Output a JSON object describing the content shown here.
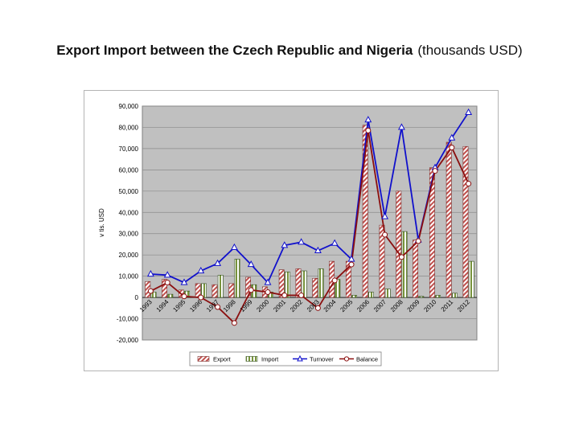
{
  "page": {
    "title_main": "Export Import between the Czech Republic and Nigeria",
    "title_sub": "(thousands USD)"
  },
  "chart_data": {
    "type": "bar",
    "categories": [
      "1993",
      "1994",
      "1995",
      "1996",
      "1997",
      "1998",
      "1999",
      "2000",
      "2001",
      "2002",
      "2003",
      "2004",
      "2005",
      "2006",
      "2007",
      "2008",
      "2009",
      "2010",
      "2011",
      "2012"
    ],
    "ylabel": "v tis. USD",
    "ylim": [
      -20000,
      90000
    ],
    "yticks": [
      -20000,
      -10000,
      0,
      10000,
      20000,
      30000,
      40000,
      50000,
      60000,
      70000,
      80000,
      90000
    ],
    "ytick_labels": [
      "-20,000",
      "-10,000",
      "0",
      "10,000",
      "20,000",
      "30,000",
      "40,000",
      "50,000",
      "60,000",
      "70,000",
      "80,000",
      "90,000"
    ],
    "grid": true,
    "legend_position": "bottom",
    "series": [
      {
        "name": "Export",
        "kind": "bar",
        "color": "#c0504d",
        "values": [
          7500,
          8500,
          3500,
          6500,
          6000,
          6500,
          9500,
          5000,
          13000,
          13500,
          9000,
          17000,
          17000,
          81000,
          34000,
          50000,
          27000,
          61000,
          73000,
          71000
        ]
      },
      {
        "name": "Import",
        "kind": "bar",
        "color": "#77933c",
        "values": [
          2500,
          1500,
          3000,
          6500,
          10500,
          18000,
          6000,
          2500,
          12000,
          12500,
          13500,
          8500,
          1000,
          2500,
          4000,
          31000,
          500,
          1000,
          2000,
          17000
        ]
      },
      {
        "name": "Turnover",
        "kind": "line",
        "color": "#1010cc",
        "values": [
          11000,
          10500,
          7000,
          12500,
          16000,
          23500,
          15500,
          7000,
          24500,
          26000,
          22000,
          25500,
          18000,
          83500,
          38000,
          80000,
          27000,
          61000,
          75000,
          87000
        ]
      },
      {
        "name": "Balance",
        "kind": "line",
        "color": "#8b0f0f",
        "values": [
          3000,
          7000,
          500,
          0,
          -4500,
          -12000,
          3500,
          2500,
          1000,
          1000,
          -5000,
          8000,
          15500,
          78500,
          29500,
          19000,
          26500,
          59500,
          70500,
          53500
        ]
      }
    ]
  }
}
